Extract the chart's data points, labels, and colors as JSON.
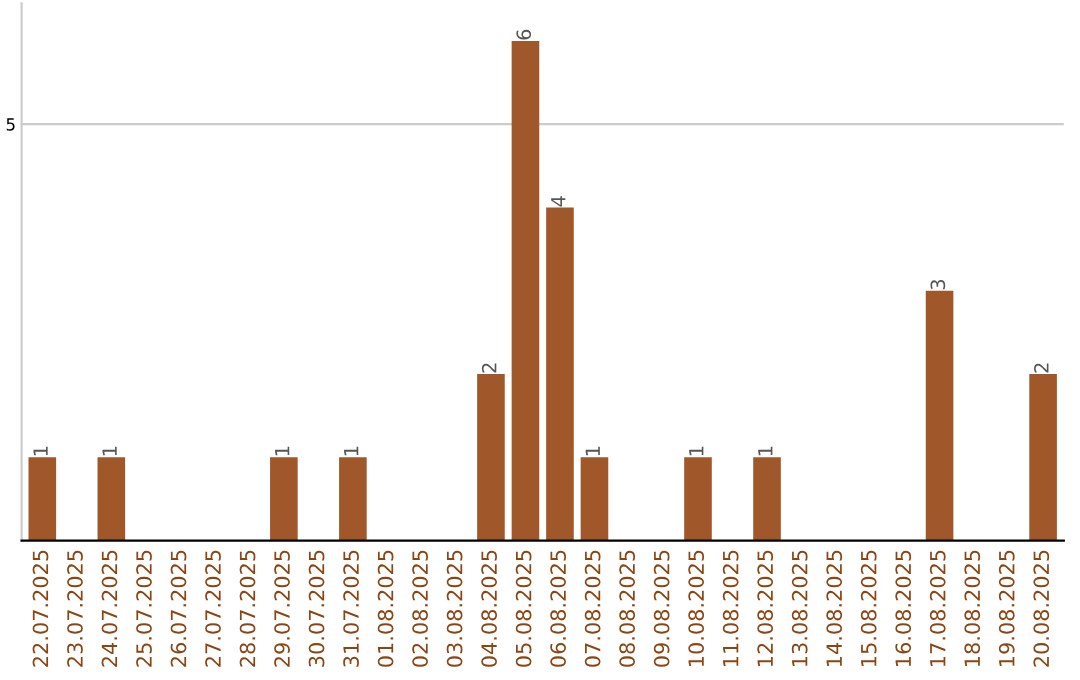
{
  "chart_data": {
    "type": "bar",
    "categories": [
      "22.07.2025",
      "23.07.2025",
      "24.07.2025",
      "25.07.2025",
      "26.07.2025",
      "27.07.2025",
      "28.07.2025",
      "29.07.2025",
      "30.07.2025",
      "31.07.2025",
      "01.08.2025",
      "02.08.2025",
      "03.08.2025",
      "04.08.2025",
      "05.08.2025",
      "06.08.2025",
      "07.08.2025",
      "08.08.2025",
      "09.08.2025",
      "10.08.2025",
      "11.08.2025",
      "12.08.2025",
      "13.08.2025",
      "14.08.2025",
      "15.08.2025",
      "16.08.2025",
      "17.08.2025",
      "18.08.2025",
      "19.08.2025",
      "20.08.2025"
    ],
    "values": [
      1,
      0,
      1,
      0,
      0,
      0,
      0,
      1,
      0,
      1,
      0,
      0,
      0,
      2,
      6,
      4,
      1,
      0,
      0,
      1,
      0,
      1,
      0,
      0,
      0,
      0,
      3,
      0,
      0,
      2
    ],
    "value_labels": [
      "1",
      null,
      "1",
      null,
      null,
      null,
      null,
      "1",
      null,
      "1",
      null,
      null,
      null,
      "2",
      "6",
      "4",
      "1",
      null,
      null,
      "1",
      null,
      "1",
      null,
      null,
      null,
      null,
      "3",
      null,
      null,
      "2"
    ],
    "color": "#a0572a",
    "ylim": [
      0,
      6.45
    ],
    "yticks": [
      5
    ],
    "grid": "y"
  }
}
